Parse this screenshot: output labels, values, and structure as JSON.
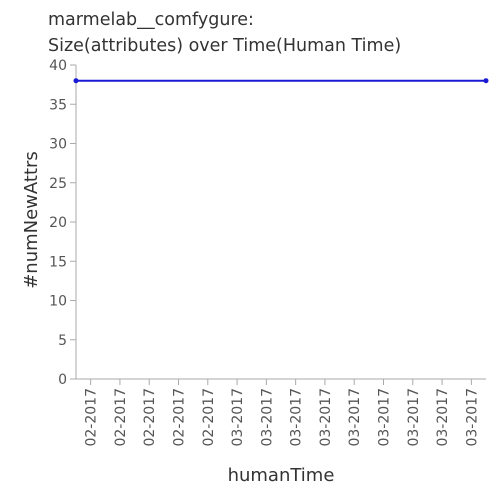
{
  "chart_data": {
    "type": "line",
    "title_lines": [
      "marmelab__comfygure:",
      "Size(attributes) over Time(Human Time)"
    ],
    "xlabel": "humanTime",
    "ylabel": "#numNewAttrs",
    "ylim": [
      0,
      40
    ],
    "yticks": [
      0,
      5,
      10,
      15,
      20,
      25,
      30,
      35,
      40
    ],
    "categories": [
      "02-2017",
      "02-2017",
      "02-2017",
      "02-2017",
      "02-2017",
      "03-2017",
      "03-2017",
      "03-2017",
      "03-2017",
      "03-2017",
      "03-2017",
      "03-2017",
      "03-2017",
      "03-2017"
    ],
    "series": [
      {
        "color": "#1a1ad6",
        "points": [
          {
            "x": 0,
            "y": 38
          },
          {
            "x": 1,
            "y": 38
          }
        ]
      }
    ],
    "grid": false,
    "legend": "none"
  }
}
